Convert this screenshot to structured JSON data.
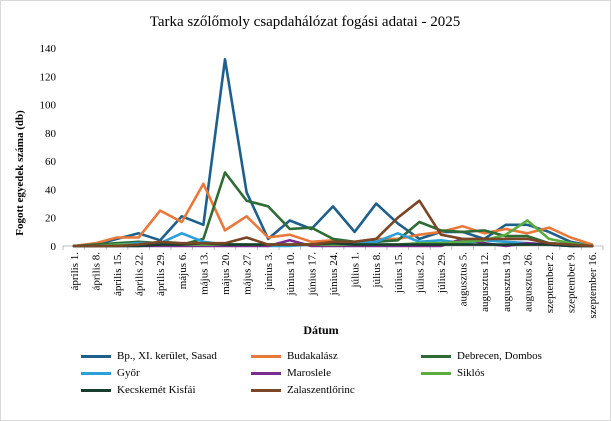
{
  "chart_data": {
    "type": "line",
    "title": "Tarka szőlőmoly csapdahálózat fogási adatai - 2025",
    "xlabel": "Dátum",
    "ylabel": "Fogott egyedek száma (db)",
    "ylim": [
      0,
      140
    ],
    "yticks": [
      0,
      20,
      40,
      60,
      80,
      100,
      120,
      140
    ],
    "grid": false,
    "legend_position": "bottom",
    "x": [
      "április 1.",
      "április 8.",
      "április 15.",
      "április 22.",
      "április 29.",
      "május 6.",
      "május 13.",
      "május 20.",
      "május 27.",
      "június 3.",
      "június 10.",
      "június 17.",
      "június 24.",
      "július 1.",
      "július 8.",
      "július 15.",
      "július 22.",
      "július 29.",
      "augusztus 5.",
      "augusztus 12.",
      "augusztus 19.",
      "augusztus 26.",
      "szeptember 2.",
      "szeptember 9.",
      "szeptember 16."
    ],
    "series": [
      {
        "name": "Bp., XI. kerület, Sasad",
        "color": "#1f5f8b",
        "values": [
          0,
          1,
          5,
          9,
          4,
          21,
          15,
          132,
          38,
          5,
          18,
          12,
          28,
          10,
          30,
          16,
          5,
          10,
          10,
          5,
          15,
          15,
          10,
          3,
          0
        ]
      },
      {
        "name": "Budakalász",
        "color": "#e8793a",
        "values": [
          0,
          2,
          6,
          6,
          25,
          17,
          44,
          11,
          21,
          6,
          8,
          3,
          4,
          3,
          5,
          5,
          8,
          10,
          14,
          9,
          12,
          9,
          13,
          6,
          1
        ]
      },
      {
        "name": "Debrecen, Dombos",
        "color": "#2e6b35",
        "values": [
          0,
          1,
          2,
          3,
          2,
          1,
          5,
          52,
          32,
          28,
          12,
          13,
          5,
          3,
          3,
          4,
          17,
          11,
          10,
          11,
          7,
          7,
          2,
          1,
          0
        ]
      },
      {
        "name": "Győr",
        "color": "#2aa0d8",
        "values": [
          0,
          0,
          1,
          2,
          2,
          9,
          3,
          1,
          1,
          0,
          0,
          1,
          1,
          2,
          3,
          9,
          3,
          4,
          2,
          4,
          3,
          2,
          1,
          0,
          0
        ]
      },
      {
        "name": "Maroslele",
        "color": "#7b2d8e",
        "values": [
          0,
          0,
          0,
          0,
          0,
          0,
          0,
          0,
          0,
          0,
          4,
          0,
          0,
          0,
          0,
          0,
          0,
          0,
          5,
          2,
          0,
          2,
          1,
          0,
          0
        ]
      },
      {
        "name": "Siklós",
        "color": "#5aad3f",
        "values": [
          0,
          0,
          1,
          1,
          1,
          1,
          1,
          1,
          1,
          1,
          1,
          1,
          1,
          1,
          1,
          1,
          2,
          2,
          3,
          4,
          8,
          18,
          5,
          2,
          0
        ]
      },
      {
        "name": "Kecskemét Kisfái",
        "color": "#173d2f",
        "values": [
          0,
          0,
          0,
          0,
          1,
          1,
          2,
          1,
          1,
          1,
          1,
          1,
          2,
          1,
          1,
          1,
          1,
          1,
          1,
          1,
          1,
          1,
          1,
          0,
          0
        ]
      },
      {
        "name": "Zalaszentlőrinc",
        "color": "#7a4626",
        "values": [
          0,
          0,
          0,
          1,
          3,
          2,
          2,
          2,
          6,
          1,
          1,
          1,
          3,
          3,
          5,
          20,
          32,
          8,
          5,
          5,
          5,
          5,
          2,
          1,
          0
        ]
      }
    ]
  }
}
